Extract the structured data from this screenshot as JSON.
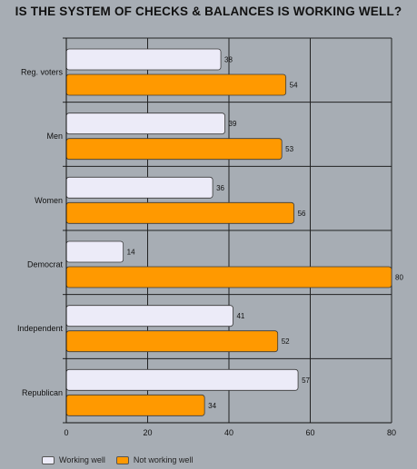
{
  "chart_data": {
    "type": "bar",
    "orientation": "horizontal",
    "title": "IS THE SYSTEM OF CHECKS & BALANCES IS WORKING WELL?",
    "categories": [
      "Reg. voters",
      "Men",
      "Women",
      "Democrat",
      "Independent",
      "Republican"
    ],
    "series": [
      {
        "name": "Working well",
        "color": "#ecebf8",
        "values": [
          38,
          39,
          36,
          14,
          41,
          57
        ]
      },
      {
        "name": "Not working well",
        "color": "#ff9900",
        "values": [
          54,
          53,
          56,
          80,
          52,
          34
        ]
      }
    ],
    "xlim": [
      0,
      80
    ],
    "xticks": [
      "0",
      "20",
      "40",
      "60",
      "80"
    ],
    "grid": true,
    "legend_position": "bottom-left"
  }
}
